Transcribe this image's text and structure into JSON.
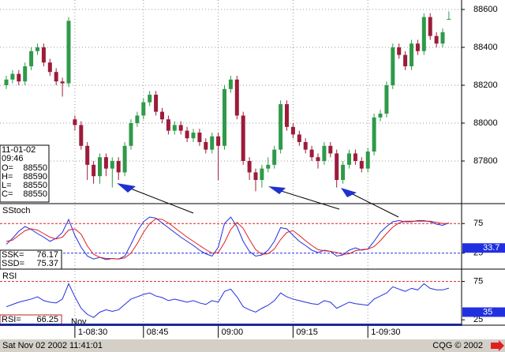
{
  "chart_data": [
    {
      "type": "candlestick",
      "info_date": "11-01-02",
      "info_time": "09:46",
      "ohlc_labels": [
        "O=",
        "H=",
        "L=",
        "C="
      ],
      "categories": [
        null,
        null,
        null,
        null,
        null,
        null,
        null,
        null,
        null,
        null,
        null,
        "1-08:30",
        null,
        null,
        null,
        null,
        null,
        null,
        null,
        null,
        null,
        null,
        "08:45",
        null,
        null,
        null,
        null,
        null,
        null,
        null,
        null,
        null,
        null,
        null,
        "09:00",
        null,
        null,
        null,
        null,
        null,
        null,
        null,
        null,
        null,
        null,
        null,
        "09:15",
        null,
        null,
        null,
        null,
        null,
        null,
        null,
        null,
        null,
        null,
        null,
        "1-09:30",
        null,
        null,
        null,
        null,
        null,
        null,
        null,
        null,
        null,
        null,
        null,
        null,
        null
      ],
      "open": [
        88200,
        88230,
        88260,
        88220,
        88300,
        88380,
        88400,
        88320,
        88270,
        88220,
        88210,
        88020,
        87990,
        87880,
        87780,
        87720,
        87820,
        87760,
        87800,
        87740,
        87880,
        88000,
        88040,
        88110,
        88150,
        88060,
        88020,
        87960,
        87990,
        87960,
        87920,
        87950,
        87900,
        87860,
        87930,
        87880,
        88180,
        88230,
        88040,
        87800,
        87740,
        87700,
        87760,
        87780,
        87860,
        88100,
        87980,
        87940,
        87900,
        87860,
        87820,
        87800,
        87880,
        87840,
        87700,
        87780,
        87840,
        87800,
        87760,
        87850,
        88030,
        88050,
        88200,
        88400,
        88360,
        88300,
        88420,
        88380,
        88560,
        88460,
        88420,
        88550
      ],
      "high": [
        88250,
        88280,
        88280,
        88320,
        88400,
        88420,
        88420,
        88340,
        88290,
        88240,
        88560,
        88040,
        88010,
        87900,
        87800,
        87840,
        87840,
        87820,
        87820,
        87900,
        88020,
        88060,
        88130,
        88170,
        88170,
        88080,
        88040,
        88010,
        88010,
        87980,
        87970,
        87970,
        87920,
        87950,
        87950,
        88200,
        88250,
        88250,
        88060,
        87820,
        87760,
        87780,
        87820,
        87880,
        88120,
        88120,
        88000,
        87960,
        87920,
        87880,
        87840,
        87900,
        87900,
        87860,
        87800,
        87860,
        87860,
        87820,
        87870,
        88050,
        88070,
        88220,
        88420,
        88420,
        88380,
        88440,
        88440,
        88580,
        88580,
        88480,
        88500,
        88590
      ],
      "low": [
        88180,
        88210,
        88200,
        88200,
        88280,
        88360,
        88300,
        88250,
        88200,
        88140,
        88190,
        87960,
        87860,
        87700,
        87680,
        87680,
        87720,
        87660,
        87700,
        87720,
        87860,
        87980,
        88020,
        88090,
        88040,
        88000,
        87940,
        87940,
        87940,
        87900,
        87900,
        87880,
        87840,
        87840,
        87700,
        87860,
        88160,
        88020,
        87780,
        87700,
        87640,
        87660,
        87740,
        87760,
        87840,
        87960,
        87920,
        87880,
        87840,
        87800,
        87760,
        87780,
        87820,
        87660,
        87680,
        87760,
        87780,
        87740,
        87740,
        87830,
        88010,
        88030,
        88180,
        88340,
        88280,
        88280,
        88360,
        88360,
        88440,
        88400,
        88400,
        88550
      ],
      "close": [
        88230,
        88260,
        88220,
        88300,
        88380,
        88400,
        88320,
        88270,
        88220,
        88210,
        88540,
        87990,
        87880,
        87780,
        87720,
        87820,
        87760,
        87800,
        87740,
        87880,
        88000,
        88040,
        88110,
        88150,
        88060,
        88020,
        87960,
        87990,
        87960,
        87920,
        87950,
        87900,
        87860,
        87930,
        87880,
        88180,
        88230,
        88040,
        87800,
        87740,
        87700,
        87760,
        87780,
        87860,
        88100,
        87980,
        87940,
        87900,
        87860,
        87820,
        87800,
        87880,
        87840,
        87700,
        87780,
        87840,
        87800,
        87760,
        87850,
        88030,
        88050,
        88200,
        88400,
        88360,
        88300,
        88420,
        88380,
        88560,
        88460,
        88420,
        88480,
        88550
      ],
      "up_color": "#2f9a4a",
      "down_color": "#9c1c3a",
      "ylim": [
        87575,
        88650
      ],
      "yticks": [
        88600,
        88400,
        88200,
        88000,
        87800
      ],
      "grid": true
    },
    {
      "type": "line",
      "title": "SStoch",
      "ylim": [
        -2,
        106
      ],
      "yticks": [
        75,
        25
      ],
      "marker": 33.7,
      "marker_color": "#2030e0",
      "ref_lines": [
        {
          "value": 75,
          "color": "#e02020"
        },
        {
          "value": 25,
          "color": "#2030e0"
        }
      ],
      "series": [
        {
          "name": "SSK=",
          "color": "#2030e0",
          "values": [
            40,
            50,
            62,
            70,
            65,
            58,
            52,
            45,
            50,
            60,
            82,
            55,
            35,
            20,
            15,
            18,
            14,
            16,
            15,
            20,
            40,
            62,
            78,
            86,
            84,
            76,
            68,
            60,
            52,
            45,
            38,
            30,
            24,
            20,
            35,
            75,
            86,
            70,
            45,
            28,
            20,
            22,
            30,
            45,
            68,
            66,
            55,
            45,
            38,
            30,
            26,
            30,
            28,
            20,
            22,
            30,
            34,
            30,
            32,
            45,
            60,
            70,
            78,
            80,
            78,
            78,
            80,
            80,
            78,
            74,
            72,
            76.17
          ]
        },
        {
          "name": "SSD=",
          "color": "#e02020",
          "values": [
            45,
            47,
            55,
            63,
            66,
            64,
            58,
            52,
            49,
            52,
            64,
            66,
            57,
            37,
            23,
            18,
            16,
            16,
            15,
            17,
            25,
            41,
            60,
            75,
            83,
            82,
            76,
            68,
            60,
            52,
            45,
            38,
            31,
            25,
            26,
            43,
            65,
            77,
            67,
            48,
            31,
            23,
            24,
            32,
            48,
            60,
            63,
            55,
            46,
            38,
            31,
            29,
            28,
            26,
            23,
            24,
            29,
            31,
            32,
            36,
            46,
            58,
            69,
            76,
            79,
            79,
            79,
            79,
            79,
            77,
            75,
            75.37
          ]
        }
      ]
    },
    {
      "type": "line",
      "title": "RSI",
      "ylim": [
        18,
        89
      ],
      "yticks": [
        75,
        25
      ],
      "marker": 35,
      "marker_color": "#2030e0",
      "month_label": "Nov",
      "ref_lines": [
        {
          "value": 75,
          "color": "#e02020"
        }
      ],
      "series": [
        {
          "name": "RSI=",
          "color": "#2030e0",
          "values": [
            42,
            45,
            48,
            50,
            52,
            55,
            50,
            48,
            47,
            52,
            72,
            55,
            40,
            32,
            28,
            35,
            38,
            36,
            38,
            45,
            52,
            55,
            58,
            60,
            56,
            54,
            50,
            52,
            50,
            48,
            50,
            47,
            45,
            50,
            48,
            62,
            65,
            55,
            42,
            38,
            35,
            40,
            44,
            50,
            60,
            55,
            52,
            50,
            48,
            46,
            45,
            50,
            48,
            40,
            44,
            48,
            46,
            45,
            44,
            52,
            56,
            60,
            68,
            65,
            62,
            66,
            64,
            72,
            66,
            64,
            64,
            66.25
          ]
        }
      ]
    }
  ],
  "status": {
    "datetime": "Sat Nov 02 2002 11:41:01",
    "copyright": "CQG © 2002"
  }
}
